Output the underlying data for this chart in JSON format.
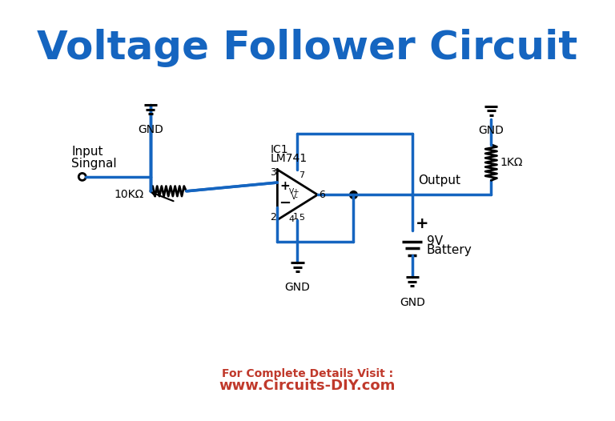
{
  "title": "Voltage Follower Circuit",
  "title_color": "#1565C0",
  "title_fontsize": 36,
  "line_color": "#1565C0",
  "line_width": 2.5,
  "bg_color": "#f0f0f0",
  "text_color": "#000000",
  "footer_color": "#c0392b",
  "footer_bold": "www.Circuits-DIY.com",
  "footer_normal": "For Complete Details Visit :",
  "component_color": "#000000"
}
